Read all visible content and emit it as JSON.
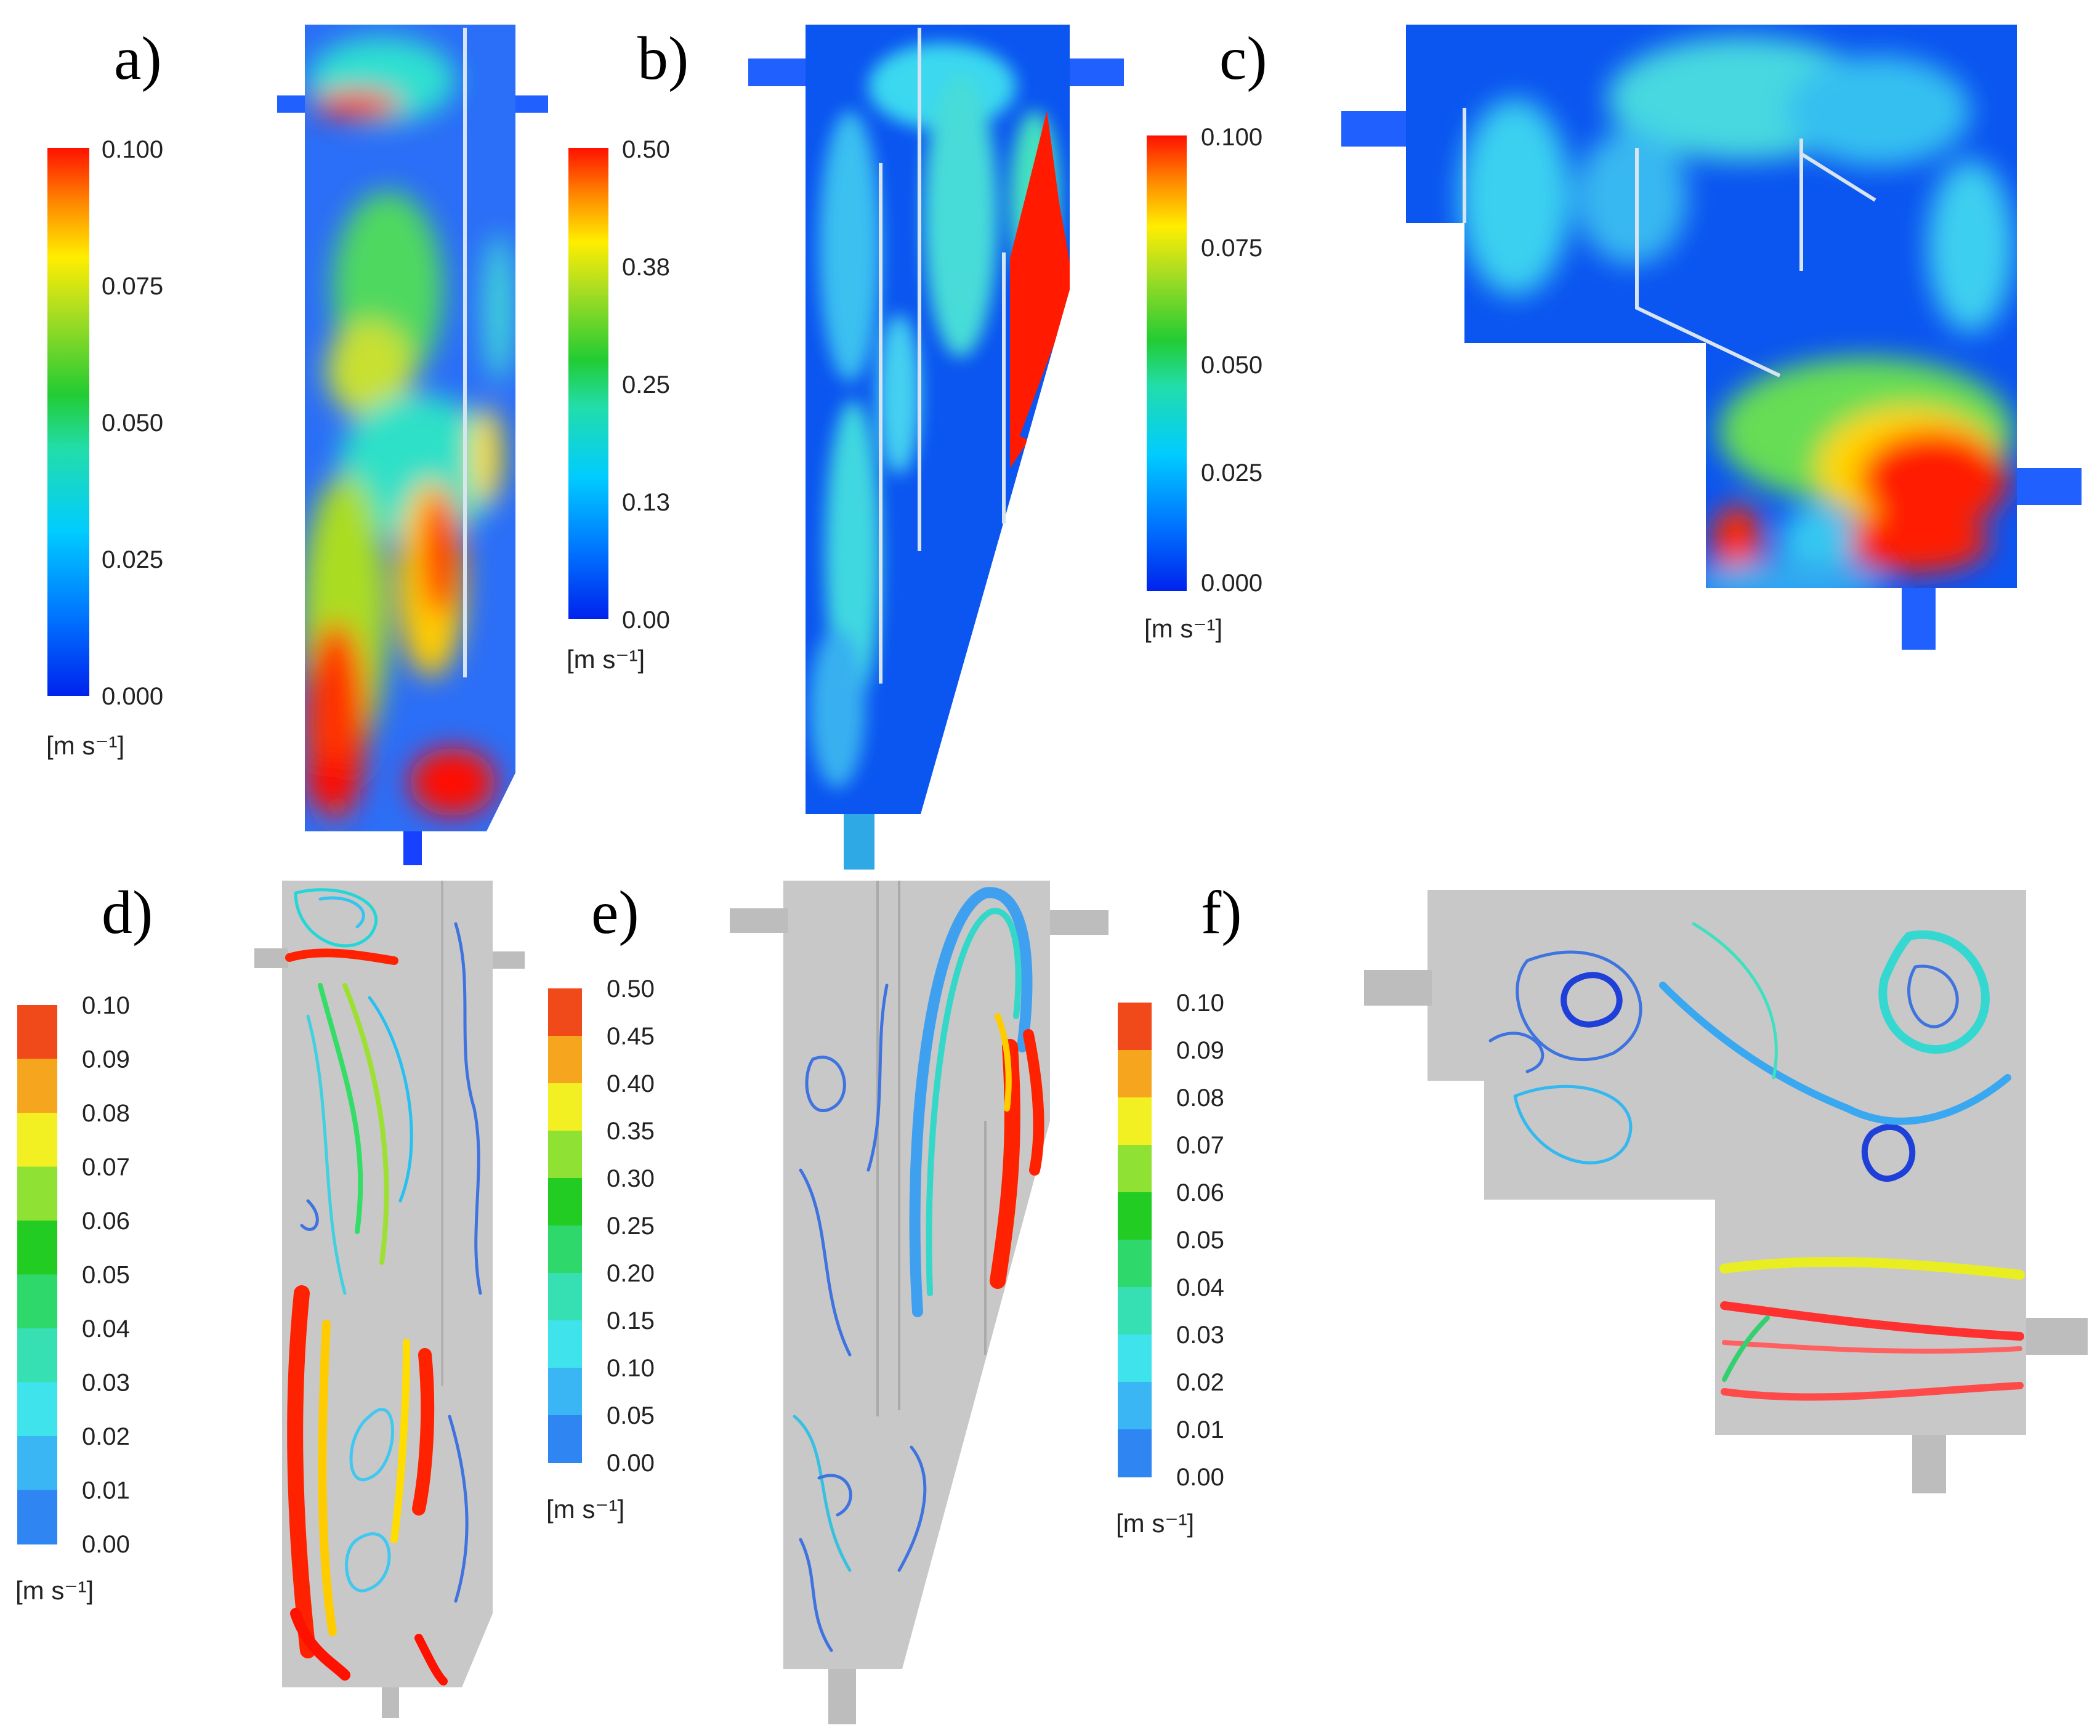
{
  "panels": {
    "a": {
      "label": "a)"
    },
    "b": {
      "label": "b)"
    },
    "c": {
      "label": "c)"
    },
    "d": {
      "label": "d)"
    },
    "e": {
      "label": "e)"
    },
    "f": {
      "label": "f)"
    }
  },
  "colorbars": {
    "a": {
      "ticks": [
        "0.100",
        "0.075",
        "0.050",
        "0.025",
        "0.000"
      ],
      "unit": "[m s⁻¹]"
    },
    "b": {
      "ticks": [
        "0.50",
        "0.38",
        "0.25",
        "0.13",
        "0.00"
      ],
      "unit": "[m s⁻¹]"
    },
    "c": {
      "ticks": [
        "0.100",
        "0.075",
        "0.050",
        "0.025",
        "0.000"
      ],
      "unit": "[m s⁻¹]"
    },
    "d": {
      "ticks": [
        "0.10",
        "0.09",
        "0.08",
        "0.07",
        "0.06",
        "0.05",
        "0.04",
        "0.03",
        "0.02",
        "0.01",
        "0.00"
      ],
      "unit": "[m s⁻¹]"
    },
    "e": {
      "ticks": [
        "0.50",
        "0.45",
        "0.40",
        "0.35",
        "0.30",
        "0.25",
        "0.20",
        "0.15",
        "0.10",
        "0.05",
        "0.00"
      ],
      "unit": "[m s⁻¹]"
    },
    "f": {
      "ticks": [
        "0.10",
        "0.09",
        "0.08",
        "0.07",
        "0.06",
        "0.05",
        "0.04",
        "0.03",
        "0.02",
        "0.01",
        "0.00"
      ],
      "unit": "[m s⁻¹]"
    }
  },
  "colors": {
    "contour_scale": [
      "#0033ee",
      "#00aaff",
      "#22ddcc",
      "#33cc33",
      "#aadd22",
      "#ffee00",
      "#ffaa00",
      "#ff2200"
    ],
    "banded_scale": [
      "#1f4fd8",
      "#2f86f2",
      "#39b6f3",
      "#3ee3ec",
      "#36e0b2",
      "#2fd86a",
      "#22cc22",
      "#8fe233",
      "#f2ef22",
      "#f6a61e",
      "#f04a1a"
    ],
    "tank_gray": "#c8c8c8",
    "baffle": "#d8e4f0"
  }
}
